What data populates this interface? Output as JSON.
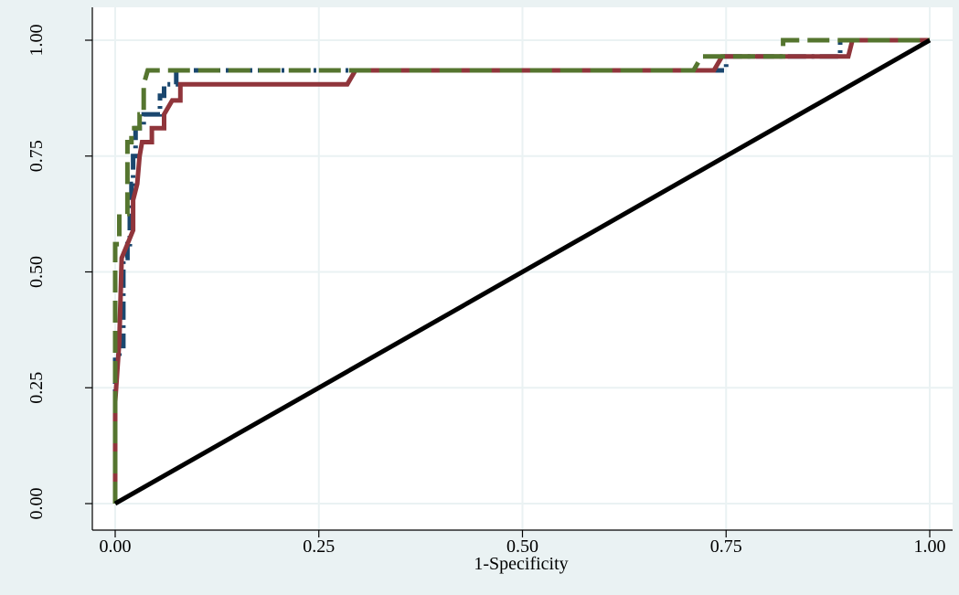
{
  "chart_data": {
    "type": "line",
    "title": "",
    "xlabel": "1-Specificity",
    "ylabel": "",
    "xlim": [
      0,
      1
    ],
    "ylim": [
      0,
      1
    ],
    "xticks": [
      "0.00",
      "0.25",
      "0.50",
      "0.75",
      "1.00"
    ],
    "yticks": [
      "0.00",
      "0.25",
      "0.50",
      "0.75",
      "1.00"
    ],
    "grid": true,
    "legend": "none",
    "colors": {
      "outer_background": "#eaf2f3",
      "plot_background": "#ffffff",
      "grid": "#eaf2f3"
    },
    "series": [
      {
        "color": "#1a476f",
        "style": "dash-dot",
        "points": [
          [
            0.0,
            0.0
          ],
          [
            0.0,
            0.22
          ],
          [
            0.0,
            0.31
          ],
          [
            0.005,
            0.31
          ],
          [
            0.005,
            0.34
          ],
          [
            0.01,
            0.34
          ],
          [
            0.01,
            0.53
          ],
          [
            0.015,
            0.53
          ],
          [
            0.015,
            0.56
          ],
          [
            0.018,
            0.56
          ],
          [
            0.018,
            0.62
          ],
          [
            0.02,
            0.62
          ],
          [
            0.02,
            0.69
          ],
          [
            0.022,
            0.69
          ],
          [
            0.022,
            0.75
          ],
          [
            0.025,
            0.75
          ],
          [
            0.025,
            0.81
          ],
          [
            0.035,
            0.81
          ],
          [
            0.035,
            0.84
          ],
          [
            0.055,
            0.84
          ],
          [
            0.055,
            0.88
          ],
          [
            0.06,
            0.88
          ],
          [
            0.06,
            0.905
          ],
          [
            0.075,
            0.905
          ],
          [
            0.075,
            0.935
          ],
          [
            0.75,
            0.935
          ],
          [
            0.75,
            0.965
          ],
          [
            0.89,
            0.965
          ],
          [
            0.89,
            1.0
          ],
          [
            1.0,
            1.0
          ]
        ]
      },
      {
        "color": "#90353b",
        "style": "solid",
        "points": [
          [
            0.0,
            0.0
          ],
          [
            0.0,
            0.22
          ],
          [
            0.005,
            0.35
          ],
          [
            0.008,
            0.53
          ],
          [
            0.015,
            0.56
          ],
          [
            0.022,
            0.59
          ],
          [
            0.022,
            0.655
          ],
          [
            0.027,
            0.69
          ],
          [
            0.03,
            0.75
          ],
          [
            0.033,
            0.78
          ],
          [
            0.045,
            0.78
          ],
          [
            0.045,
            0.81
          ],
          [
            0.06,
            0.81
          ],
          [
            0.06,
            0.84
          ],
          [
            0.07,
            0.87
          ],
          [
            0.08,
            0.87
          ],
          [
            0.08,
            0.905
          ],
          [
            0.285,
            0.905
          ],
          [
            0.295,
            0.935
          ],
          [
            0.735,
            0.935
          ],
          [
            0.745,
            0.965
          ],
          [
            0.9,
            0.965
          ],
          [
            0.905,
            1.0
          ],
          [
            1.0,
            1.0
          ]
        ]
      },
      {
        "color": "#55752f",
        "style": "dash",
        "points": [
          [
            0.0,
            0.0
          ],
          [
            0.0,
            0.56
          ],
          [
            0.005,
            0.56
          ],
          [
            0.005,
            0.625
          ],
          [
            0.015,
            0.625
          ],
          [
            0.015,
            0.78
          ],
          [
            0.02,
            0.78
          ],
          [
            0.02,
            0.81
          ],
          [
            0.03,
            0.81
          ],
          [
            0.03,
            0.84
          ],
          [
            0.035,
            0.84
          ],
          [
            0.035,
            0.905
          ],
          [
            0.04,
            0.935
          ],
          [
            0.71,
            0.935
          ],
          [
            0.72,
            0.965
          ],
          [
            0.82,
            0.965
          ],
          [
            0.82,
            1.0
          ],
          [
            1.0,
            1.0
          ]
        ]
      },
      {
        "color": "#000000",
        "style": "solid",
        "points": [
          [
            0.0,
            0.0
          ],
          [
            1.0,
            1.0
          ]
        ]
      }
    ]
  }
}
